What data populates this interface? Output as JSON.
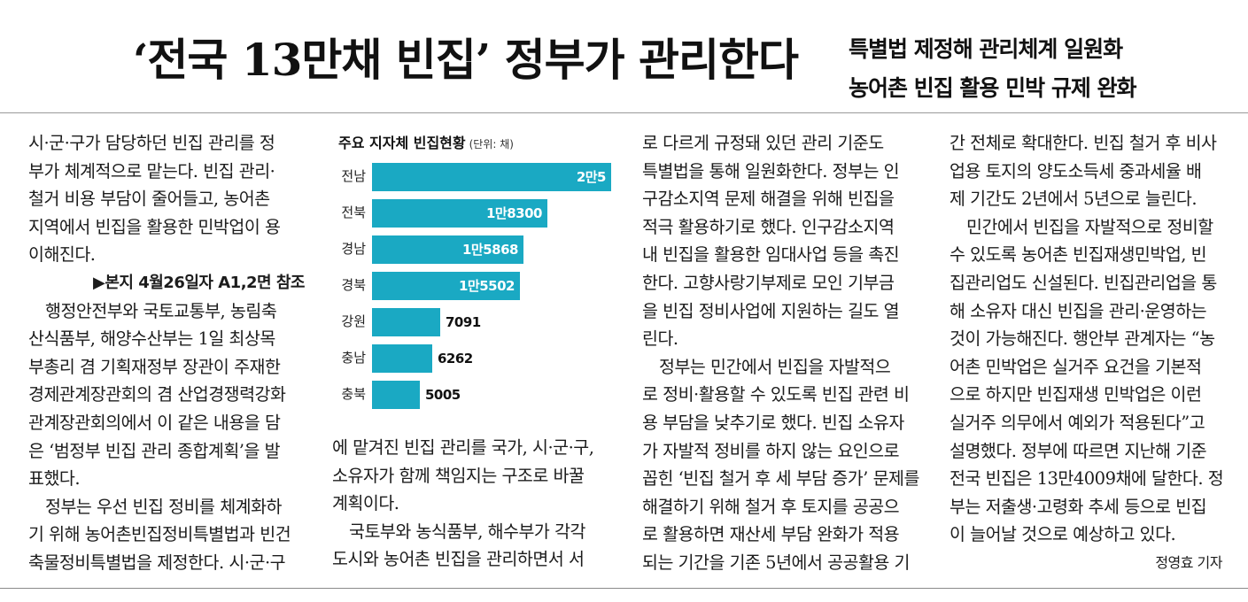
{
  "article": {
    "headline": "‘전국 13만채 빈집’ 정부가 관리한다",
    "subheads": [
      "특별법 제정해 관리체계 일원화",
      "농어촌 빈집 활용 민박 규제 완화"
    ],
    "col1": [
      "시·군·구가 담당하던 빈집 관리를 정",
      "부가 체계적으로 맡는다. 빈집 관리·",
      "철거 비용 부담이 줄어들고, 농어촌",
      "지역에서 빈집을 활용한 민박업이 용",
      "이해진다.",
      "▶본지 4월26일자 A1,2면 참조",
      "　행정안전부와 국토교통부, 농림축",
      "산식품부, 해양수산부는 1일 최상목",
      "부총리 겸 기획재정부 장관이 주재한",
      "경제관계장관회의 겸 산업경쟁력강화",
      "관계장관회의에서 이 같은 내용을 담",
      "은 ‘범정부 빈집 관리 종합계획’을 발",
      "표했다.",
      "　정부는 우선 빈집 정비를 체계화하",
      "기 위해 농어촌빈집정비특별법과 빈건",
      "축물정비특별법을 제정한다. 시·군·구"
    ],
    "col2": [
      "에 맡겨진 빈집 관리를 국가, 시·군·구,",
      "소유자가 함께 책임지는 구조로 바꿀",
      "계획이다.",
      "　국토부와 농식품부, 해수부가 각각",
      "도시와 농어촌 빈집을 관리하면서 서"
    ],
    "col3": [
      "로 다르게 규정돼 있던 관리 기준도",
      "특별법을 통해 일원화한다. 정부는 인",
      "구감소지역 문제 해결을 위해 빈집을",
      "적극 활용하기로 했다. 인구감소지역",
      "내 빈집을 활용한 임대사업 등을 촉진",
      "한다. 고향사랑기부제로 모인 기부금",
      "을 빈집 정비사업에 지원하는 길도 열",
      "린다.",
      "　정부는 민간에서 빈집을 자발적으",
      "로 정비·활용할 수 있도록 빈집 관련 비",
      "용 부담을 낮추기로 했다. 빈집 소유자",
      "가 자발적 정비를 하지 않는 요인으로",
      "꼽힌 ‘빈집 철거 후 세 부담 증가’ 문제를",
      "해결하기 위해 철거 후 토지를 공공으",
      "로 활용하면 재산세 부담 완화가 적용",
      "되는 기간을 기존 5년에서 공공활용 기"
    ],
    "col4": [
      "간 전체로 확대한다. 빈집 철거 후 비사",
      "업용 토지의 양도소득세 중과세율 배",
      "제 기간도 2년에서 5년으로 늘린다.",
      "　민간에서 빈집을 자발적으로 정비할",
      "수 있도록 농어촌 빈집재생민박업, 빈",
      "집관리업도 신설된다. 빈집관리업을 통",
      "해 소유자 대신 빈집을 관리·운영하는",
      "것이 가능해진다. 행안부 관계자는 “농",
      "어촌 민박업은 실거주 요건을 기본적",
      "으로 하지만 빈집재생 민박업은 이런",
      "실거주 의무에서 예외가 적용된다”고",
      "설명했다. 정부에 따르면 지난해 기준",
      "전국 빈집은 13만4009채에 달한다. 정",
      "부는 저출생·고령화 추세 등으로 빈집",
      "이 늘어날 것으로 예상하고 있다."
    ],
    "byline": "정영효 기자"
  },
  "chart_data": {
    "type": "bar",
    "orientation": "horizontal",
    "title": "주요 지자체 빈집현황",
    "unit": "(단위: 채)",
    "categories": [
      "전남",
      "전북",
      "경남",
      "경북",
      "강원",
      "충남",
      "충북"
    ],
    "values": [
      25000,
      18300,
      15868,
      15502,
      7091,
      6262,
      5005
    ],
    "value_labels": [
      "2만5",
      "1만8300",
      "1만5868",
      "1만5502",
      "7091",
      "6262",
      "5005"
    ],
    "bar_color": "#1aa9c3",
    "xlim": [
      0,
      25000
    ]
  }
}
